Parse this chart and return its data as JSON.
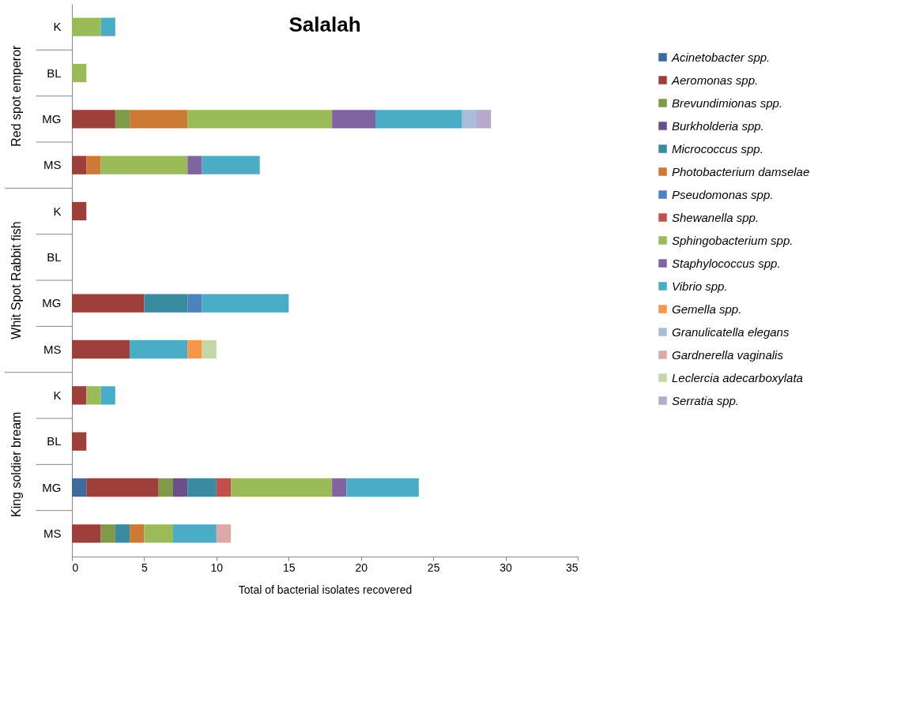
{
  "chart_data": {
    "type": "bar",
    "orientation": "horizontal",
    "stacked": true,
    "title": "Salalah",
    "xlabel": "Total of bacterial isolates recovered",
    "categories": [
      "K",
      "BL",
      "MG",
      "MS",
      "K",
      "BL",
      "MG",
      "MS",
      "K",
      "BL",
      "MG",
      "MS"
    ],
    "annotations": [
      "Red spot emperor",
      "Whit Spot  Rabbit fish",
      "King soldier bream"
    ],
    "xlim": [
      0,
      35
    ],
    "xticks": [
      0,
      5,
      10,
      15,
      20,
      25,
      30,
      35
    ],
    "grid": false,
    "legend": "right",
    "series": [
      {
        "name": "Acinetobacter  spp.",
        "color": "#3f6aa0",
        "values": [
          null,
          null,
          null,
          null,
          null,
          null,
          null,
          null,
          null,
          null,
          1,
          null
        ]
      },
      {
        "name": "Aeromonas spp.",
        "color": "#9e3f3c",
        "values": [
          null,
          null,
          3,
          1,
          1,
          null,
          5,
          4,
          1,
          1,
          5,
          2
        ]
      },
      {
        "name": "Brevundimionas  spp.",
        "color": "#7f9a48",
        "values": [
          null,
          null,
          1,
          null,
          null,
          null,
          null,
          null,
          null,
          null,
          1,
          1
        ]
      },
      {
        "name": "Burkholderia spp.",
        "color": "#6a4f8a",
        "values": [
          null,
          null,
          null,
          null,
          null,
          null,
          null,
          null,
          null,
          null,
          1,
          null
        ]
      },
      {
        "name": "Micrococcus spp.",
        "color": "#3a8aa0",
        "values": [
          null,
          null,
          null,
          null,
          null,
          null,
          3,
          null,
          null,
          null,
          2,
          1
        ]
      },
      {
        "name": "Photobacterium damselae",
        "color": "#cc7a35",
        "values": [
          null,
          null,
          4,
          1,
          null,
          null,
          null,
          null,
          null,
          null,
          null,
          1
        ]
      },
      {
        "name": "Pseudomonas spp.",
        "color": "#4f81bd",
        "values": [
          null,
          null,
          null,
          null,
          null,
          null,
          1,
          null,
          null,
          null,
          null,
          null
        ]
      },
      {
        "name": "Shewanella  spp.",
        "color": "#c0504d",
        "values": [
          null,
          null,
          null,
          null,
          null,
          null,
          null,
          null,
          null,
          null,
          1,
          null
        ]
      },
      {
        "name": "Sphingobacterium  spp.",
        "color": "#9bbb59",
        "values": [
          2,
          1,
          10,
          6,
          null,
          null,
          null,
          null,
          1,
          null,
          7,
          2
        ]
      },
      {
        "name": "Staphylococcus  spp.",
        "color": "#8064a2",
        "values": [
          null,
          null,
          3,
          1,
          null,
          null,
          null,
          null,
          null,
          null,
          1,
          null
        ]
      },
      {
        "name": "Vibrio spp.",
        "color": "#4bacc6",
        "values": [
          1,
          null,
          6,
          4,
          null,
          null,
          6,
          4,
          1,
          null,
          5,
          3
        ]
      },
      {
        "name": "Gemella  spp.",
        "color": "#f79646",
        "values": [
          null,
          null,
          null,
          null,
          null,
          null,
          null,
          1,
          null,
          null,
          null,
          null
        ]
      },
      {
        "name": "Granulicatella elegans",
        "color": "#a9bcd9",
        "values": [
          null,
          null,
          1,
          null,
          null,
          null,
          null,
          null,
          null,
          null,
          null,
          null
        ]
      },
      {
        "name": "Gardnerella vaginalis",
        "color": "#dba9a8",
        "values": [
          null,
          null,
          null,
          null,
          null,
          null,
          null,
          null,
          null,
          null,
          null,
          1
        ]
      },
      {
        "name": "Leclercia adecarboxylata",
        "color": "#c4d7a9",
        "values": [
          null,
          null,
          null,
          null,
          null,
          null,
          null,
          1,
          null,
          null,
          null,
          null
        ]
      },
      {
        "name": "Serratia spp.",
        "color": "#b7a9ca",
        "values": [
          null,
          null,
          1,
          null,
          null,
          null,
          null,
          null,
          null,
          null,
          null,
          null
        ]
      }
    ]
  }
}
